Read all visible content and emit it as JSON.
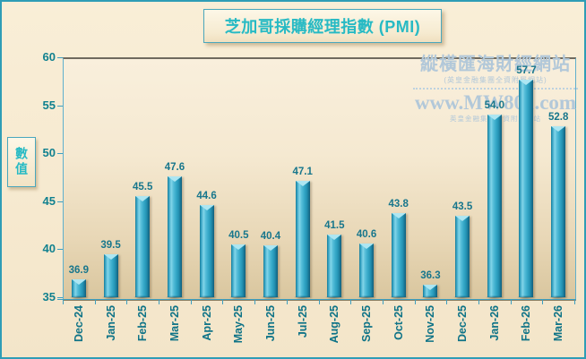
{
  "window": {
    "frame_border_color": "#2f9db6",
    "background_color": "#f7ebd2"
  },
  "chart_data": {
    "type": "bar",
    "title": "芝加哥採購經理指數 (PMI)",
    "categories": [
      "Dec-24",
      "Jan-25",
      "Feb-25",
      "Mar-25",
      "Apr-25",
      "May-25",
      "Jun-25",
      "Jul-25",
      "Aug-25",
      "Sep-25",
      "Oct-25",
      "Nov-25",
      "Dec-25",
      "Jan-26",
      "Feb-26",
      "Mar-26"
    ],
    "values": [
      36.9,
      39.5,
      45.5,
      47.6,
      44.6,
      40.5,
      40.4,
      47.1,
      41.5,
      40.6,
      43.8,
      36.3,
      43.5,
      54.0,
      57.7,
      52.8
    ],
    "xlabel": "",
    "ylabel": "數值",
    "ylim": [
      35,
      60
    ],
    "yticks": [
      35,
      40,
      45,
      50,
      55,
      60
    ],
    "grid": false,
    "legend": "none",
    "data_labels": true,
    "bar_style": "3d-cylinder",
    "value_label_decimals": 1
  },
  "watermark": {
    "site_name": "縱橫匯海財經網站",
    "site_subtitle": "(英皇金融集團全資附屬網站)",
    "site_url": "www.MW801.com",
    "url_subtitle": "英皇金融集團全資附屬網站",
    "color": "#b2c8d9"
  },
  "colors": {
    "title_text": "#27bac4",
    "axis_line": "#3e9fc0",
    "tick_label": "#11818f",
    "category_label": "#0e7387",
    "bar_value_label": "#17768c",
    "bar_main": "#35a8c8",
    "bar_edge": "#115f7c",
    "bar_highlight": "#ade6f2",
    "plot_top": "#f9efdc",
    "plot_bottom": "#d9c69e"
  }
}
